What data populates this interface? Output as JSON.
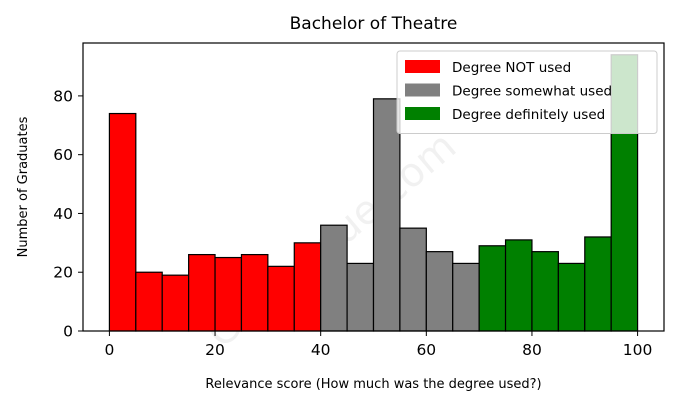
{
  "watermark": "Cour. esue.com",
  "chart_data": {
    "type": "bar",
    "subtype": "histogram",
    "title": "Bachelor of Theatre",
    "xlabel": "Relevance score (How much was the degree used?)",
    "ylabel": "Number of Graduates",
    "xlim": [
      -5,
      105
    ],
    "ylim": [
      0,
      98
    ],
    "xticks": [
      0,
      20,
      40,
      60,
      80,
      100
    ],
    "yticks": [
      0,
      20,
      40,
      60,
      80
    ],
    "bin_width": 5,
    "grid": false,
    "legend_position": "top-right",
    "edge_color": "#000000",
    "series": [
      {
        "name": "Degree NOT used",
        "color": "#ff0000",
        "bins": [
          {
            "x0": 0,
            "x1": 5,
            "value": 74
          },
          {
            "x0": 5,
            "x1": 10,
            "value": 20
          },
          {
            "x0": 10,
            "x1": 15,
            "value": 19
          },
          {
            "x0": 15,
            "x1": 20,
            "value": 26
          },
          {
            "x0": 20,
            "x1": 25,
            "value": 25
          },
          {
            "x0": 25,
            "x1": 30,
            "value": 26
          },
          {
            "x0": 30,
            "x1": 35,
            "value": 22
          },
          {
            "x0": 35,
            "x1": 40,
            "value": 30
          }
        ]
      },
      {
        "name": "Degree somewhat used",
        "color": "#808080",
        "bins": [
          {
            "x0": 40,
            "x1": 45,
            "value": 36
          },
          {
            "x0": 45,
            "x1": 50,
            "value": 23
          },
          {
            "x0": 50,
            "x1": 55,
            "value": 79
          },
          {
            "x0": 55,
            "x1": 60,
            "value": 35
          },
          {
            "x0": 60,
            "x1": 65,
            "value": 27
          },
          {
            "x0": 65,
            "x1": 70,
            "value": 23
          }
        ]
      },
      {
        "name": "Degree definitely used",
        "color": "#008000",
        "bins": [
          {
            "x0": 70,
            "x1": 75,
            "value": 29
          },
          {
            "x0": 75,
            "x1": 80,
            "value": 31
          },
          {
            "x0": 80,
            "x1": 85,
            "value": 27
          },
          {
            "x0": 85,
            "x1": 90,
            "value": 23
          },
          {
            "x0": 90,
            "x1": 95,
            "value": 32
          },
          {
            "x0": 95,
            "x1": 100,
            "value": 94
          }
        ]
      }
    ]
  }
}
